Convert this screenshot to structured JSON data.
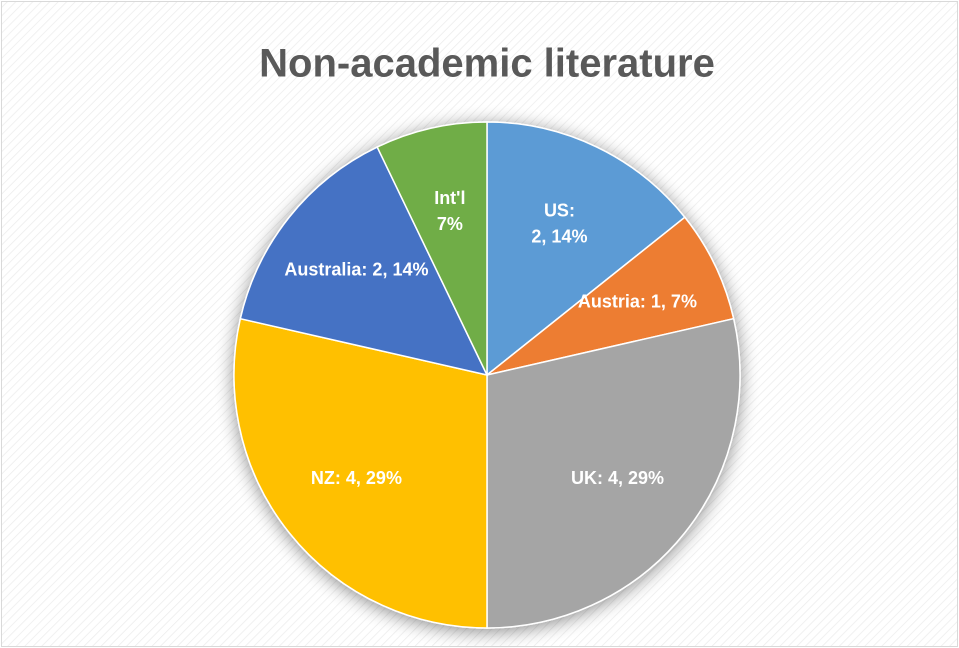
{
  "chart_data": {
    "type": "pie",
    "title": "Non-academic literature",
    "categories": [
      "US",
      "Austria",
      "UK",
      "NZ",
      "Australia",
      "Int'l"
    ],
    "values": [
      2,
      1,
      4,
      4,
      2,
      1
    ],
    "value_labels": [
      "US:\n2, 14%",
      "Austria: 1, 7%",
      "UK: 4, 29%",
      "NZ: 4, 29%",
      "Australia: 2, 14%",
      "Int'l\n7%"
    ],
    "colors": [
      "#5b9bd5",
      "#ed7d31",
      "#a5a5a5",
      "#ffc000",
      "#4472c4",
      "#70ad47"
    ]
  }
}
